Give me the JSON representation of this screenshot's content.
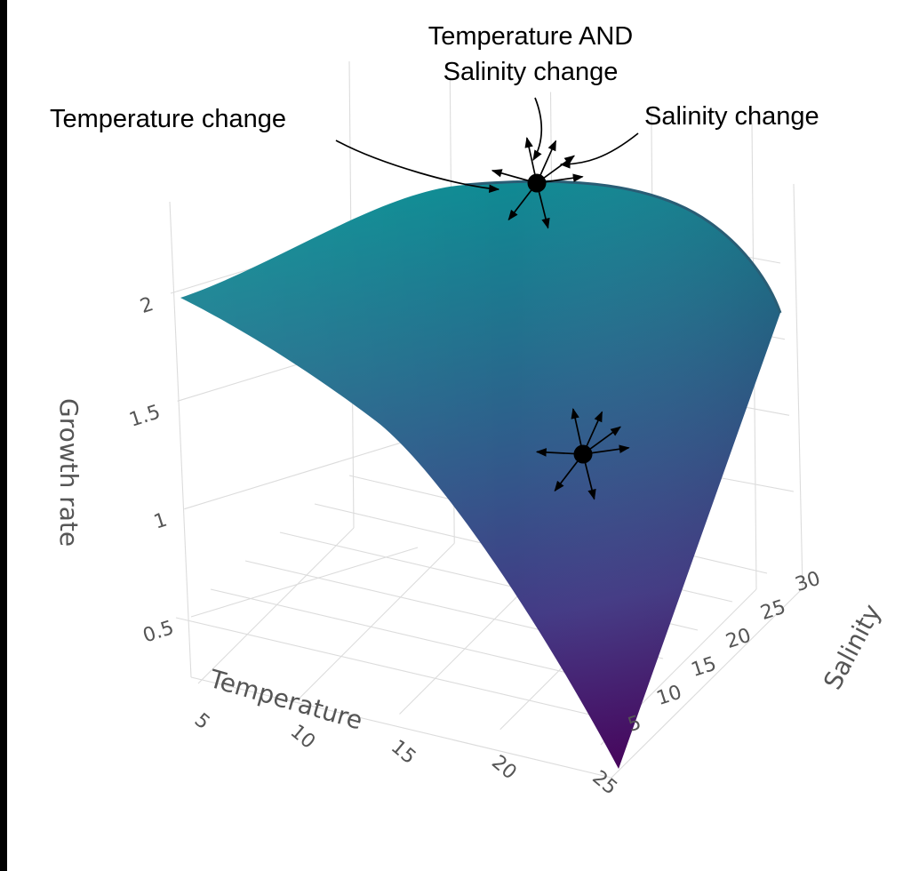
{
  "chart_data": {
    "type": "surface3d",
    "title": "",
    "x_axis": {
      "label": "Temperature",
      "ticks": [
        5,
        10,
        15,
        20,
        25
      ]
    },
    "y_axis": {
      "label": "Salinity",
      "ticks": [
        5,
        10,
        15,
        20,
        25,
        30
      ]
    },
    "z_axis": {
      "label": "Growth rate",
      "ticks": [
        0.5,
        1,
        1.5,
        2
      ]
    },
    "surface": {
      "colorscale": "viridis",
      "corners": [
        {
          "temperature": 2,
          "salinity": 33,
          "growth_rate": 2.0
        },
        {
          "temperature": 27,
          "salinity": 33,
          "growth_rate": 2.0
        },
        {
          "temperature": 2,
          "salinity": 3,
          "growth_rate": 2.0
        },
        {
          "temperature": 27,
          "salinity": 3,
          "growth_rate": 0.1
        }
      ],
      "peak": {
        "temperature": 14,
        "salinity": 18,
        "growth_rate": 2.3
      }
    },
    "annotations": [
      {
        "text": "Temperature change"
      },
      {
        "text_line1": "Temperature AND",
        "text_line2": "Salinity change"
      },
      {
        "text": "Salinity change"
      }
    ],
    "markers": [
      {
        "location": "surface peak"
      },
      {
        "location": "lower surface"
      }
    ],
    "grid": true
  }
}
